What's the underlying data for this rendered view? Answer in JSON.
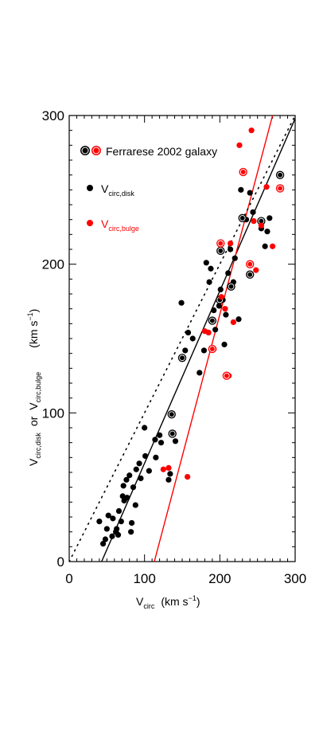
{
  "chart_data": {
    "type": "scatter",
    "title": "",
    "xlabel": {
      "main": "V",
      "sub": "circ",
      "units": "(km s",
      "sup": "−1",
      "close": ")"
    },
    "ylabel": {
      "a_main": "V",
      "a_sub": "circ,disk",
      "or": "or",
      "b_main": "V",
      "b_sub": "circ,bulge",
      "units": "(km s",
      "sup": "−1",
      "close": ")"
    },
    "xlim": [
      0,
      300
    ],
    "ylim": [
      0,
      300
    ],
    "xticks": [
      "0",
      "100",
      "200",
      "300"
    ],
    "yticks": [
      "0",
      "100",
      "200",
      "300"
    ],
    "legend": {
      "placement": "top-left",
      "entries": [
        {
          "label": "Ferrarese 2002 galaxy",
          "marker": "double-ring-black-red",
          "color": "#000000"
        },
        {
          "label_main": "V",
          "label_sub": "circ,disk",
          "marker": "dot",
          "color": "#000000"
        },
        {
          "label_main": "V",
          "label_sub": "circ,bulge",
          "marker": "dot",
          "color": "#ff0000"
        }
      ]
    },
    "series": [
      {
        "name": "Vcirc,disk",
        "color": "#000000",
        "points": [
          [
            40,
            27
          ],
          [
            45,
            12
          ],
          [
            48,
            15
          ],
          [
            50,
            22
          ],
          [
            52,
            31
          ],
          [
            57,
            17
          ],
          [
            58,
            29
          ],
          [
            62,
            20
          ],
          [
            63,
            22
          ],
          [
            65,
            18
          ],
          [
            66,
            34
          ],
          [
            69,
            27
          ],
          [
            71,
            44
          ],
          [
            72,
            51
          ],
          [
            73,
            41
          ],
          [
            76,
            55
          ],
          [
            77,
            43
          ],
          [
            80,
            58
          ],
          [
            82,
            20
          ],
          [
            83,
            26
          ],
          [
            85,
            50
          ],
          [
            88,
            38
          ],
          [
            89,
            62
          ],
          [
            93,
            66
          ],
          [
            95,
            56
          ],
          [
            100,
            90
          ],
          [
            101,
            71
          ],
          [
            106,
            61
          ],
          [
            114,
            82
          ],
          [
            115,
            70
          ],
          [
            120,
            85
          ],
          [
            122,
            80
          ],
          [
            132,
            55
          ],
          [
            134,
            59
          ],
          [
            141,
            81
          ],
          [
            149,
            174
          ],
          [
            154,
            142
          ],
          [
            158,
            154
          ],
          [
            164,
            150
          ],
          [
            173,
            127
          ],
          [
            179,
            142
          ],
          [
            182,
            201
          ],
          [
            186,
            188
          ],
          [
            188,
            197
          ],
          [
            190,
            162
          ],
          [
            192,
            169
          ],
          [
            194,
            156
          ],
          [
            199,
            172
          ],
          [
            201,
            183
          ],
          [
            204,
            176
          ],
          [
            206,
            146
          ],
          [
            208,
            166
          ],
          [
            211,
            194
          ],
          [
            214,
            210
          ],
          [
            216,
            185
          ],
          [
            218,
            188
          ],
          [
            220,
            204
          ],
          [
            225,
            163
          ],
          [
            228,
            250
          ],
          [
            235,
            230
          ],
          [
            240,
            248
          ],
          [
            244,
            235
          ],
          [
            255,
            224
          ],
          [
            260,
            212
          ],
          [
            263,
            222
          ],
          [
            266,
            231
          ]
        ],
        "ferrarese": [
          [
            137,
            86
          ],
          [
            136,
            99
          ],
          [
            150,
            137
          ],
          [
            190,
            162
          ],
          [
            200,
            176
          ],
          [
            201,
            209
          ],
          [
            215,
            185
          ],
          [
            230,
            231
          ],
          [
            240,
            193
          ],
          [
            255,
            229
          ],
          [
            280,
            260
          ]
        ]
      },
      {
        "name": "Vcirc,bulge",
        "color": "#ff0000",
        "points": [
          [
            125,
            62
          ],
          [
            132,
            63
          ],
          [
            157,
            57
          ],
          [
            180,
            155
          ],
          [
            185,
            154
          ],
          [
            192,
            143
          ],
          [
            202,
            178
          ],
          [
            207,
            170
          ],
          [
            212,
            125
          ],
          [
            214,
            214
          ],
          [
            218,
            161
          ],
          [
            226,
            280
          ],
          [
            231,
            262
          ],
          [
            242,
            290
          ],
          [
            245,
            229
          ],
          [
            248,
            196
          ],
          [
            255,
            226
          ],
          [
            262,
            252
          ],
          [
            270,
            212
          ]
        ],
        "ferrarese": [
          [
            190,
            143
          ],
          [
            201,
            214
          ],
          [
            209,
            125
          ],
          [
            231,
            262
          ],
          [
            240,
            200
          ],
          [
            280,
            251
          ]
        ]
      }
    ],
    "lines": [
      {
        "name": "disk-fit",
        "style": "solid",
        "color": "#000000",
        "from": [
          43,
          0
        ],
        "to": [
          300,
          298
        ]
      },
      {
        "name": "bulge-fit",
        "style": "solid",
        "color": "#ff0000",
        "from": [
          113,
          0
        ],
        "to": [
          270,
          300
        ]
      },
      {
        "name": "one-to-one",
        "style": "dotted",
        "color": "#000000",
        "from": [
          0,
          0
        ],
        "to": [
          300,
          300
        ]
      }
    ]
  }
}
